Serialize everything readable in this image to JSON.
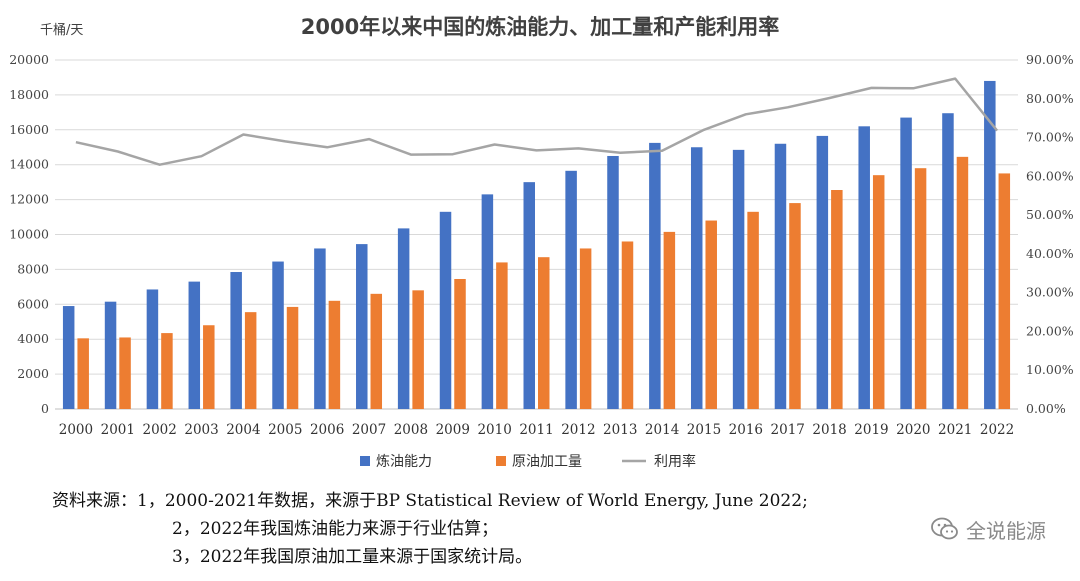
{
  "chart_data": {
    "type": "bar",
    "title": "2000年以来中国的炼油能力、加工量和产能利用率",
    "ylabel_unit": "千桶/天",
    "categories": [
      "2000",
      "2001",
      "2002",
      "2003",
      "2004",
      "2005",
      "2006",
      "2007",
      "2008",
      "2009",
      "2010",
      "2011",
      "2012",
      "2013",
      "2014",
      "2015",
      "2016",
      "2017",
      "2018",
      "2019",
      "2020",
      "2021",
      "2022"
    ],
    "y_left": {
      "min": 0,
      "max": 20000,
      "step": 2000
    },
    "y_right": {
      "min": 0,
      "max": 90,
      "step": 10,
      "format": "percent_2dp"
    },
    "series": [
      {
        "name": "炼油能力",
        "kind": "bar",
        "axis": "left",
        "color": "#4472C4",
        "values": [
          5900,
          6150,
          6850,
          7300,
          7850,
          8450,
          9200,
          9450,
          10350,
          11300,
          12300,
          13000,
          13650,
          14500,
          15250,
          15000,
          14850,
          15200,
          15650,
          16200,
          16700,
          16950,
          18800
        ]
      },
      {
        "name": "原油加工量",
        "kind": "bar",
        "axis": "left",
        "color": "#ED7D31",
        "values": [
          4050,
          4100,
          4350,
          4800,
          5550,
          5850,
          6200,
          6600,
          6800,
          7450,
          8400,
          8700,
          9200,
          9600,
          10150,
          10800,
          11300,
          11800,
          12550,
          13400,
          13800,
          14450,
          13500
        ]
      },
      {
        "name": "利用率",
        "kind": "line",
        "axis": "right",
        "color": "#A5A5A5",
        "values": [
          68.8,
          66.4,
          63.0,
          65.2,
          70.8,
          69.0,
          67.5,
          69.6,
          65.6,
          65.7,
          68.2,
          66.7,
          67.2,
          66.1,
          66.6,
          72.0,
          76.0,
          77.8,
          80.2,
          82.8,
          82.7,
          85.2,
          71.8
        ]
      }
    ],
    "legend_position": "bottom",
    "grid": true
  },
  "source": {
    "line1": "资料来源：1，2000-2021年数据，来源于BP Statistical Review of World Energy, June 2022;",
    "line2": "2，2022年我国炼油能力来源于行业估算；",
    "line3": "3，2022年我国原油加工量来源于国家统计局。"
  },
  "watermark": {
    "text": "全说能源",
    "icon": "wechat-icon"
  }
}
